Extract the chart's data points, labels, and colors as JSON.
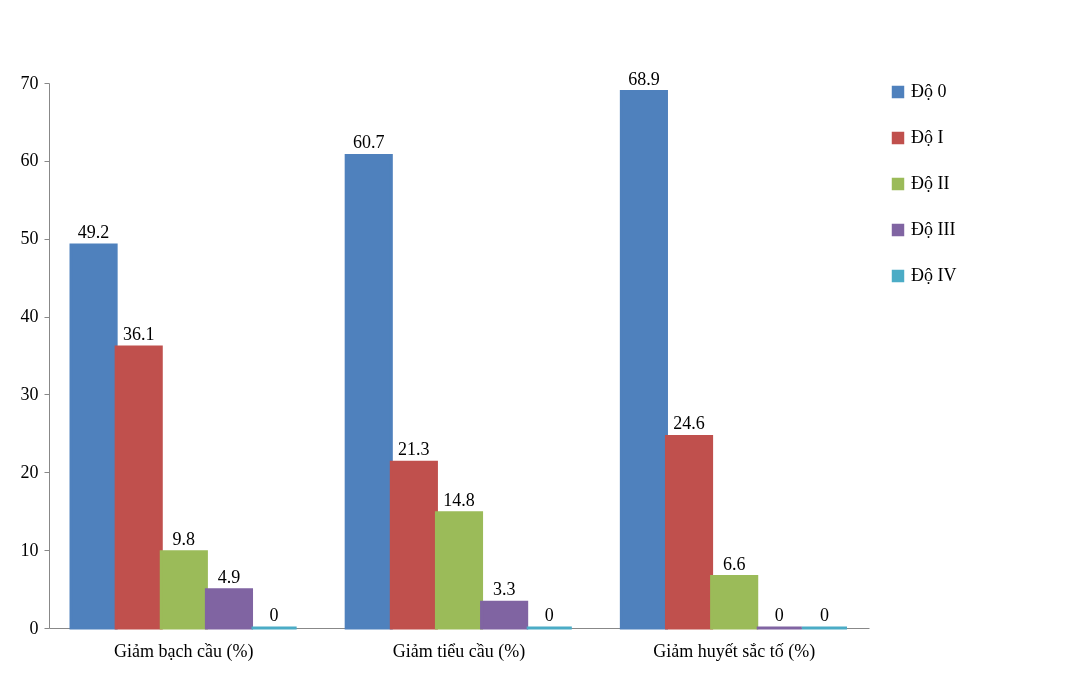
{
  "chart_data": {
    "type": "bar",
    "categories": [
      "Giảm bạch cầu (%)",
      "Giảm tiểu cầu (%)",
      "Giảm huyết sắc tố (%)"
    ],
    "series": [
      {
        "name": "Độ 0",
        "color": "#4f81bd",
        "values": [
          49.2,
          60.7,
          68.9
        ]
      },
      {
        "name": "Độ I",
        "color": "#c0504d",
        "values": [
          36.1,
          21.3,
          24.6
        ]
      },
      {
        "name": "Độ II",
        "color": "#9bbb59",
        "values": [
          9.8,
          14.8,
          6.6
        ]
      },
      {
        "name": "Độ III",
        "color": "#8064a2",
        "values": [
          4.9,
          3.3,
          0
        ]
      },
      {
        "name": "Độ IV",
        "color": "#4bacc6",
        "values": [
          0,
          0,
          0
        ]
      }
    ],
    "ylim": [
      0,
      70
    ],
    "yticks": [
      0,
      10,
      20,
      30,
      40,
      50,
      60,
      70
    ],
    "grid": false,
    "legend": "right",
    "data_labels": true
  }
}
